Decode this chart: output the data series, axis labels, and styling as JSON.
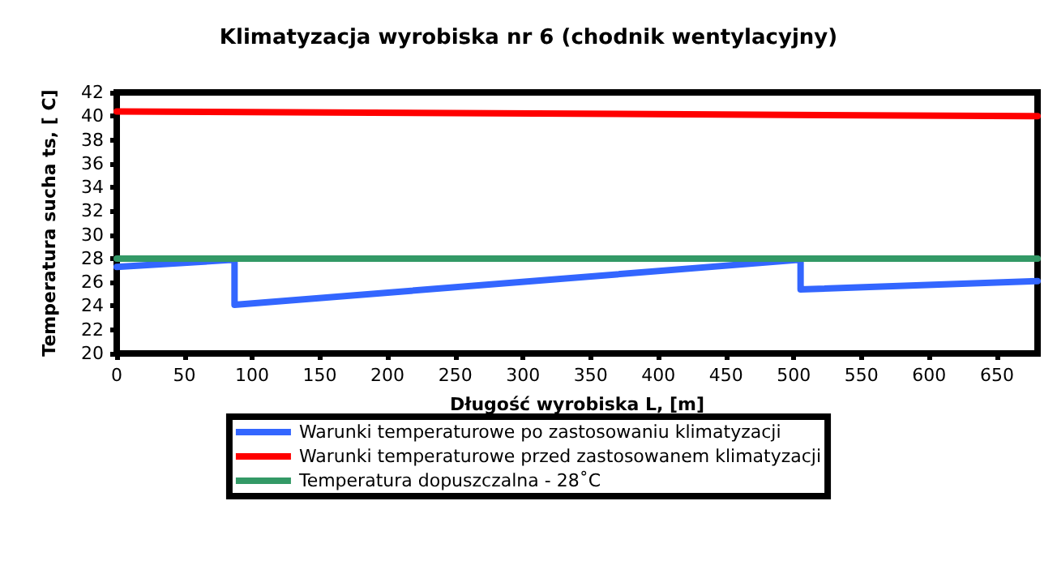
{
  "chart_data": {
    "type": "line",
    "title": "Klimatyzacja wyrobiska nr 6 (chodnik wentylacyjny)",
    "xlabel": "Długość wyrobiska L, [m]",
    "ylabel": "Temperatura sucha ts, [ C]",
    "xlim": [
      0,
      680
    ],
    "xticks": [
      0,
      50,
      100,
      150,
      200,
      250,
      300,
      350,
      400,
      450,
      500,
      550,
      600,
      650
    ],
    "ylim": [
      20,
      42
    ],
    "yticks": [
      20,
      22,
      24,
      26,
      28,
      30,
      32,
      34,
      36,
      38,
      40,
      42
    ],
    "series": [
      {
        "name": "Warunki temperaturowe po zastosowaniu klimatyzacji",
        "color": "#3366ff",
        "x": [
          0,
          87,
          87,
          505,
          505,
          680
        ],
        "values": [
          27.3,
          27.9,
          24.1,
          27.9,
          25.4,
          26.1
        ]
      },
      {
        "name": "Warunki temperaturowe przed zastosowanem klimatyzacji",
        "color": "#ff0000",
        "x": [
          0,
          680
        ],
        "values": [
          40.4,
          40.0
        ]
      },
      {
        "name": "Temperatura dopuszczalna - 28˚C",
        "color": "#339966",
        "x": [
          0,
          680
        ],
        "values": [
          28,
          28
        ]
      }
    ],
    "grid": false,
    "legend": "bottom",
    "marker": "none",
    "line_style": "solid"
  }
}
